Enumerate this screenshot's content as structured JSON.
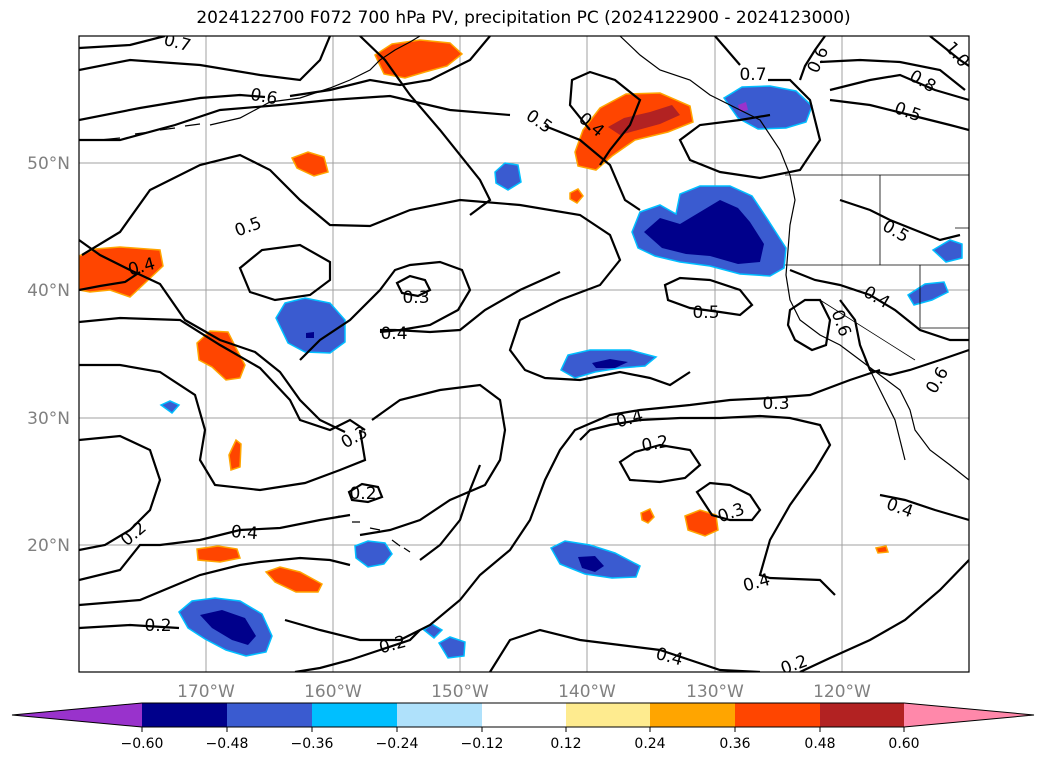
{
  "title": "2024122700 F072 700 hPa PV, precipitation PC (2024122900 - 2024123000)",
  "colors": {
    "neg_extreme": "#9932cc",
    "neg_060": "#00008b",
    "neg_048": "#3a5bd0",
    "neg_036": "#00bfff",
    "neg_024": "#afe1fb",
    "neutral": "#ffffff",
    "pos_012": "#feeb8f",
    "pos_024": "#ffa500",
    "pos_036": "#ff4500",
    "pos_048": "#b22222",
    "pos_extreme": "#ff88aa",
    "contour": "#000000",
    "grid": "#a0a0a0",
    "tick_label": "#808080"
  },
  "axes": {
    "lon_ticks": [
      "170°W",
      "160°W",
      "150°W",
      "140°W",
      "130°W",
      "120°W"
    ],
    "lat_ticks": [
      "50°N",
      "40°N",
      "30°N",
      "20°N"
    ]
  },
  "contour_labels": [
    "0.7",
    "0.6",
    "0.5",
    "0.4",
    "0.5",
    "0.4",
    "0.7",
    "0.6",
    "0.8",
    "0.5",
    "1.0",
    "0.5",
    "0.4",
    "0.3",
    "0.4",
    "0.5",
    "0.6",
    "0.4",
    "0.6",
    "0.3",
    "0.4",
    "0.2",
    "0.3",
    "0.2",
    "0.3",
    "0.2",
    "0.4",
    "0.2",
    "0.2",
    "0.4",
    "0.4",
    "0.2"
  ],
  "colorbar": {
    "ticks": [
      "−0.60",
      "−0.48",
      "−0.36",
      "−0.24",
      "−0.12",
      "0.12",
      "0.24",
      "0.36",
      "0.48",
      "0.60"
    ]
  }
}
